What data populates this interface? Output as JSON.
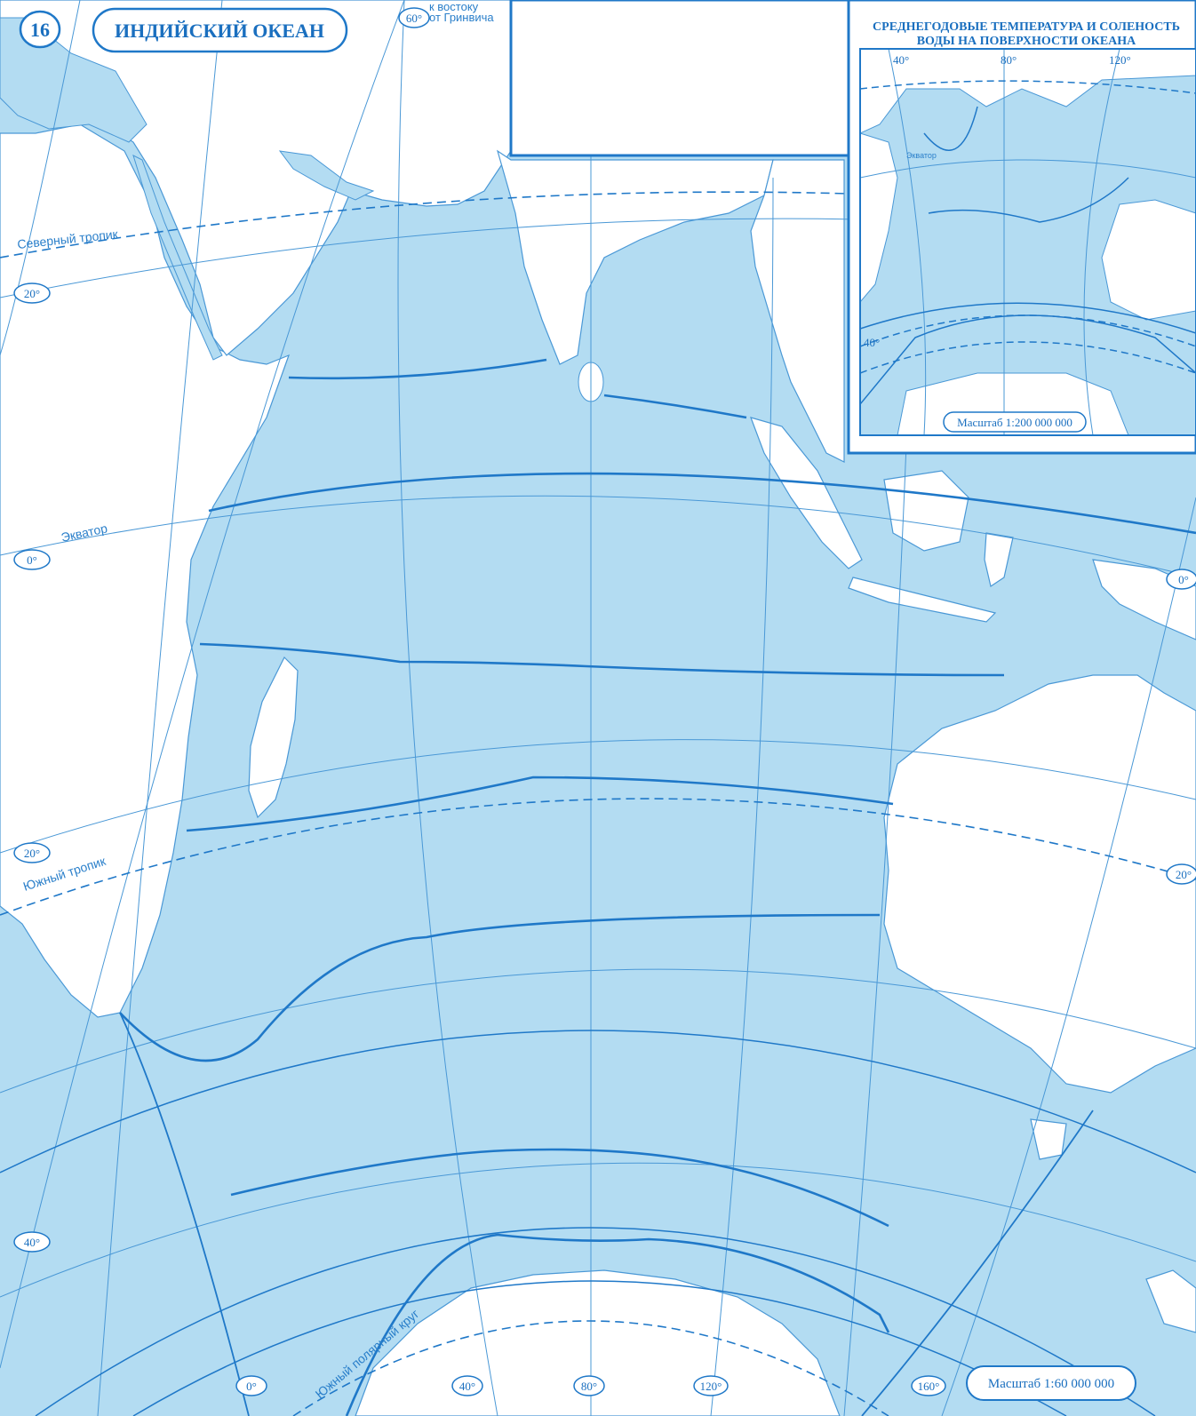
{
  "map": {
    "page_number": "16",
    "title": "ИНДИЙСКИЙ ОКЕАН",
    "scale": "Масштаб 1:60 000 000",
    "greenwich_note": [
      "к востоку",
      "от Гринвича"
    ],
    "parallels": {
      "north_tropic": "Северный тропик",
      "equator": "Экватор",
      "south_tropic": "Южный тропик",
      "south_polar_circle": "Южный полярный круг"
    },
    "latitude_marks": [
      "20°",
      "0°",
      "20°",
      "40°"
    ],
    "longitude_marks": [
      "60°",
      "0°",
      "40°",
      "80°",
      "120°",
      "160°"
    ],
    "right_edge_marks": [
      "0°",
      "20°"
    ]
  },
  "inset": {
    "title_line1": "СРЕДНЕГОДОВЫЕ ТЕМПЕРАТУРА И СОЛЕНОСТЬ",
    "title_line2": "ВОДЫ НА ПОВЕРХНОСТИ ОКЕАНА",
    "longitude_marks": [
      "40°",
      "80°",
      "120°"
    ],
    "equator_label": "Экватор",
    "lat_mark": "40°",
    "scale": "Масштаб 1:200 000 000"
  },
  "colors": {
    "ocean": "#aad6f0",
    "ocean_light": "#c6e5f7",
    "land": "#ffffff",
    "line": "#1f78c8",
    "text": "#1a6fbf"
  }
}
